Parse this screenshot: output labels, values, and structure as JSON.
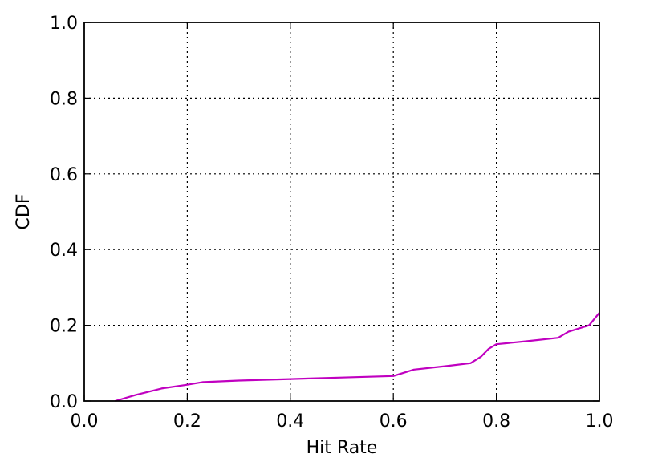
{
  "chart_data": {
    "type": "line",
    "xlabel": "Hit Rate",
    "ylabel": "CDF",
    "xlim": [
      0.0,
      1.0
    ],
    "ylim": [
      0.0,
      1.0
    ],
    "xticks": [
      "0.0",
      "0.2",
      "0.4",
      "0.6",
      "0.8",
      "1.0"
    ],
    "yticks": [
      "0.0",
      "0.2",
      "0.4",
      "0.6",
      "0.8",
      "1.0"
    ],
    "grid": true,
    "series": [
      {
        "color": "#c000c0",
        "x": [
          0.06,
          0.1,
          0.15,
          0.2,
          0.23,
          0.3,
          0.4,
          0.5,
          0.6,
          0.64,
          0.7,
          0.75,
          0.77,
          0.785,
          0.8,
          0.86,
          0.92,
          0.94,
          0.98,
          1.0
        ],
        "y": [
          0.0,
          0.016,
          0.033,
          0.043,
          0.05,
          0.054,
          0.058,
          0.062,
          0.066,
          0.083,
          0.092,
          0.1,
          0.117,
          0.138,
          0.15,
          0.158,
          0.167,
          0.183,
          0.2,
          0.233
        ]
      }
    ]
  }
}
